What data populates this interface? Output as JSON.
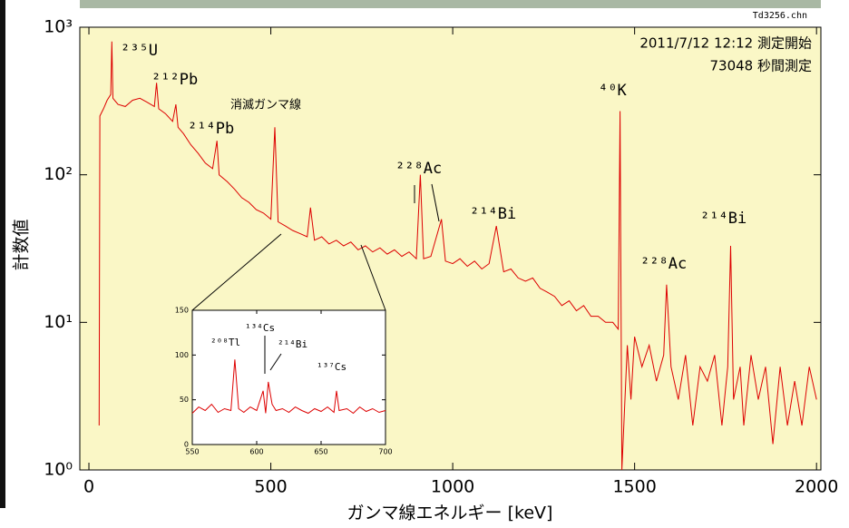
{
  "file_name": "Td3256.chn",
  "chart_data": [
    {
      "type": "line",
      "log_y": true,
      "x_label": "ガンマ線エネルギー [keV]",
      "y_label": "計数値",
      "color": "#dd0000",
      "background": "#faf7c6",
      "info": [
        "2011/7/12 12:12  測定開始",
        "73048 秒間測定"
      ],
      "annotations": [
        "²³⁵U",
        "²¹²Pb",
        "²¹⁴Pb",
        "消滅ガンマ線",
        "²²⁸Ac",
        "²¹⁴Bi",
        "⁴⁰K",
        "²²⁸Ac",
        "²¹⁴Bi"
      ],
      "xlim": [
        -25,
        2012
      ],
      "xticks": [
        0,
        500,
        1000,
        1500,
        2000
      ],
      "ylim": [
        1,
        1000
      ],
      "yticks": [
        {
          "value": 1,
          "label": "10⁰"
        },
        {
          "value": 10,
          "label": "10¹"
        },
        {
          "value": 100,
          "label": "10²"
        },
        {
          "value": 1000,
          "label": "10³"
        }
      ],
      "x": [
        28,
        30,
        40,
        50,
        60,
        63,
        66,
        80,
        100,
        120,
        140,
        160,
        180,
        186,
        192,
        210,
        230,
        239,
        245,
        260,
        280,
        300,
        320,
        340,
        352,
        358,
        380,
        400,
        420,
        440,
        460,
        480,
        500,
        511,
        520,
        540,
        560,
        580,
        600,
        609,
        620,
        640,
        660,
        680,
        700,
        720,
        740,
        760,
        780,
        800,
        820,
        840,
        860,
        880,
        900,
        911,
        920,
        940,
        969,
        980,
        1000,
        1020,
        1040,
        1060,
        1080,
        1100,
        1120,
        1140,
        1160,
        1180,
        1200,
        1220,
        1240,
        1260,
        1280,
        1300,
        1320,
        1340,
        1360,
        1380,
        1400,
        1420,
        1440,
        1455,
        1460,
        1465,
        1480,
        1490,
        1500,
        1520,
        1540,
        1560,
        1580,
        1588,
        1600,
        1620,
        1640,
        1660,
        1680,
        1700,
        1720,
        1740,
        1756,
        1764,
        1772,
        1790,
        1800,
        1820,
        1840,
        1860,
        1880,
        1900,
        1920,
        1940,
        1960,
        1980,
        2000
      ],
      "values": [
        2,
        250,
        280,
        320,
        350,
        800,
        330,
        300,
        290,
        320,
        330,
        310,
        290,
        420,
        280,
        260,
        230,
        300,
        210,
        190,
        160,
        140,
        120,
        110,
        170,
        100,
        90,
        80,
        70,
        65,
        58,
        55,
        50,
        210,
        48,
        45,
        42,
        40,
        38,
        60,
        36,
        38,
        34,
        36,
        33,
        35,
        31,
        33,
        30,
        32,
        29,
        31,
        28,
        30,
        27,
        100,
        27,
        28,
        50,
        26,
        25,
        27,
        24,
        26,
        23,
        25,
        45,
        22,
        23,
        20,
        19,
        20,
        17,
        16,
        15,
        13,
        14,
        12,
        13,
        11,
        11,
        10,
        10,
        9,
        270,
        1,
        7,
        3,
        8,
        5,
        7,
        4,
        6,
        18,
        5,
        3,
        6,
        2,
        5,
        4,
        6,
        2,
        5,
        33,
        3,
        5,
        2,
        6,
        3,
        5,
        1.5,
        5,
        2,
        4,
        2,
        5,
        3
      ]
    },
    {
      "type": "line",
      "log_y": false,
      "color": "#dd0000",
      "background": "#ffffff",
      "annotations": [
        "²⁰⁸Tl",
        "¹³⁴Cs",
        "²¹⁴Bi",
        "¹³⁷Cs"
      ],
      "xlim": [
        550,
        700
      ],
      "xticks": [
        550,
        600,
        650,
        700
      ],
      "ylim": [
        0,
        150
      ],
      "yticks": [
        0,
        50,
        100,
        150
      ],
      "x": [
        550,
        555,
        560,
        565,
        570,
        575,
        580,
        583,
        586,
        590,
        595,
        600,
        605,
        607,
        609,
        612,
        615,
        620,
        625,
        630,
        635,
        640,
        645,
        650,
        655,
        660,
        662,
        664,
        670,
        675,
        680,
        685,
        690,
        695,
        700
      ],
      "values": [
        35,
        42,
        38,
        45,
        36,
        40,
        38,
        95,
        40,
        36,
        42,
        38,
        60,
        35,
        70,
        45,
        38,
        40,
        36,
        42,
        38,
        35,
        40,
        37,
        42,
        36,
        60,
        38,
        40,
        35,
        42,
        37,
        40,
        36,
        38
      ]
    }
  ]
}
